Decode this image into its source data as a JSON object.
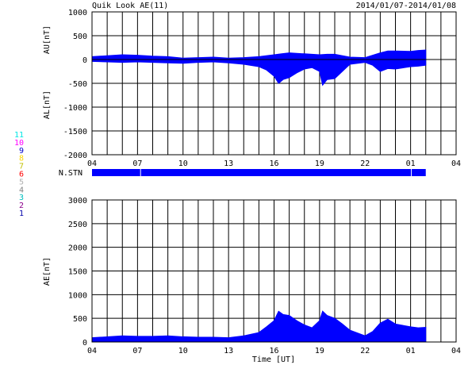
{
  "header": {
    "title": "Quik Look AE(11)",
    "date_range": "2014/01/07-2014/01/08"
  },
  "colors": {
    "fill": "#0000ff",
    "axis": "#000000",
    "background": "#ffffff"
  },
  "legend_stations": [
    {
      "label": "11",
      "color": "#00e5e5"
    },
    {
      "label": "10",
      "color": "#ff00ff"
    },
    {
      "label": "9",
      "color": "#0000cc"
    },
    {
      "label": "8",
      "color": "#ffd700"
    },
    {
      "label": "7",
      "color": "#bfbf00"
    },
    {
      "label": "6",
      "color": "#ff0000"
    },
    {
      "label": "5",
      "color": "#b0b0b0"
    },
    {
      "label": "4",
      "color": "#808080"
    },
    {
      "label": "3",
      "color": "#00bfbf"
    },
    {
      "label": "2",
      "color": "#8b008b"
    },
    {
      "label": "1",
      "color": "#0000aa"
    }
  ],
  "nstn_label": "N.STN",
  "chart_data": [
    {
      "type": "area",
      "panel": "AU/AL",
      "ylabel_upper": "AU[nT]",
      "ylabel_lower": "AL[nT]",
      "ylim": [
        -2000,
        1000
      ],
      "yticks": [
        1000,
        500,
        0,
        -500,
        -1000,
        -1500,
        -2000
      ],
      "xlim": [
        4,
        28
      ],
      "xtick_labels": [
        "04",
        "07",
        "10",
        "13",
        "16",
        "19",
        "22",
        "01",
        "04"
      ],
      "grid": true,
      "series": [
        {
          "name": "AU",
          "x": [
            4,
            5,
            6,
            7,
            8,
            9,
            10,
            11,
            12,
            13,
            14,
            15,
            16,
            16.5,
            17,
            17.5,
            18,
            18.5,
            19,
            19.5,
            20,
            21,
            22,
            22.5,
            23,
            23.5,
            24,
            25,
            25.5,
            26
          ],
          "values": [
            60,
            80,
            100,
            90,
            70,
            60,
            30,
            40,
            50,
            30,
            40,
            60,
            100,
            120,
            140,
            130,
            120,
            110,
            100,
            110,
            110,
            50,
            40,
            90,
            140,
            180,
            180,
            170,
            190,
            200
          ]
        },
        {
          "name": "AL",
          "x": [
            4,
            5,
            6,
            7,
            8,
            9,
            10,
            11,
            12,
            13,
            14,
            15,
            15.5,
            16,
            16.3,
            16.6,
            17,
            17.5,
            18,
            18.5,
            19,
            19.2,
            19.5,
            20,
            20.5,
            21,
            22,
            22.5,
            23,
            23.5,
            24,
            25,
            25.5,
            26
          ],
          "values": [
            -40,
            -50,
            -60,
            -50,
            -60,
            -70,
            -80,
            -60,
            -50,
            -70,
            -100,
            -150,
            -220,
            -350,
            -500,
            -420,
            -380,
            -280,
            -200,
            -170,
            -250,
            -540,
            -420,
            -400,
            -250,
            -100,
            -60,
            -120,
            -250,
            -190,
            -200,
            -150,
            -140,
            -120
          ]
        }
      ]
    },
    {
      "type": "area",
      "panel": "AE",
      "ylabel": "AE[nT]",
      "xlabel": "Time [UT]",
      "ylim": [
        0,
        3000
      ],
      "yticks": [
        3000,
        2500,
        2000,
        1500,
        1000,
        500,
        0
      ],
      "xlim": [
        4,
        28
      ],
      "xtick_labels": [
        "04",
        "07",
        "10",
        "13",
        "16",
        "19",
        "22",
        "01",
        "04"
      ],
      "grid": true,
      "series": [
        {
          "name": "AE",
          "x": [
            4,
            5,
            6,
            7,
            8,
            9,
            10,
            11,
            12,
            13,
            14,
            15,
            15.5,
            16,
            16.3,
            16.6,
            17,
            17.5,
            18,
            18.5,
            19,
            19.2,
            19.5,
            20,
            20.5,
            21,
            22,
            22.5,
            23,
            23.5,
            24,
            25,
            25.5,
            26
          ],
          "values": [
            90,
            110,
            130,
            120,
            120,
            130,
            110,
            100,
            100,
            90,
            130,
            200,
            320,
            450,
            650,
            580,
            560,
            450,
            360,
            300,
            450,
            650,
            560,
            500,
            380,
            250,
            130,
            220,
            400,
            480,
            380,
            320,
            300,
            310
          ]
        }
      ]
    }
  ]
}
